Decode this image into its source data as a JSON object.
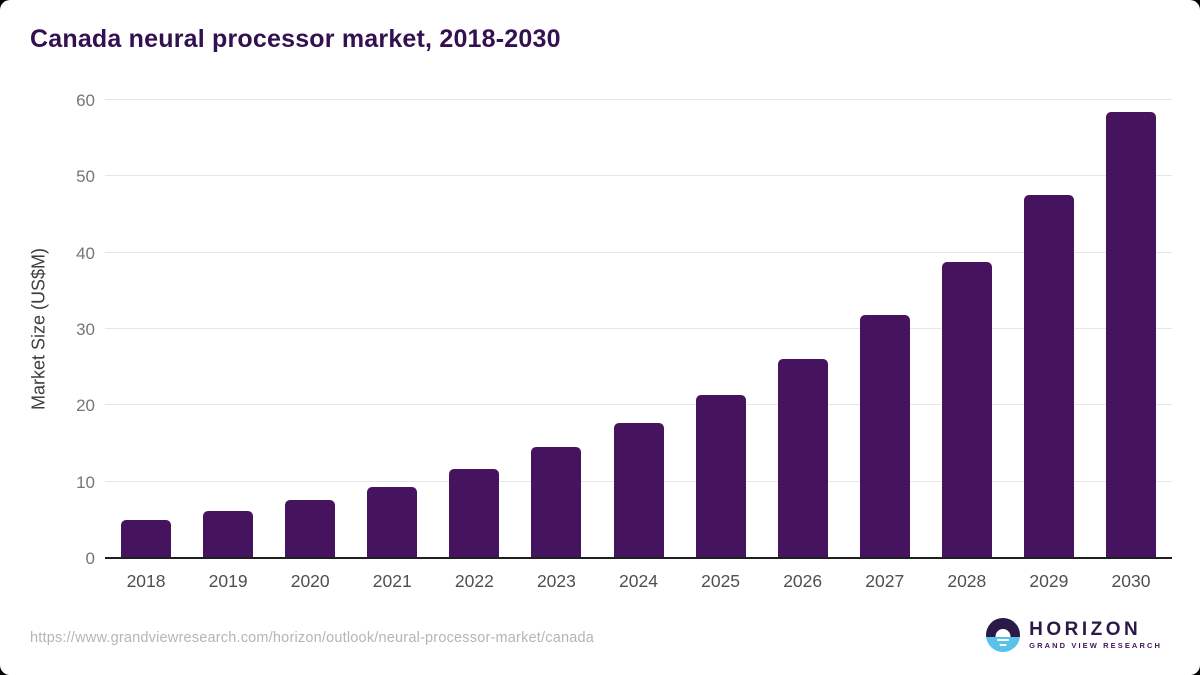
{
  "header": {
    "title": "Canada neural processor market, 2018-2030"
  },
  "chart_data": {
    "type": "bar",
    "title": "Canada neural processor market, 2018-2030",
    "categories": [
      "2018",
      "2019",
      "2020",
      "2021",
      "2022",
      "2023",
      "2024",
      "2025",
      "2026",
      "2027",
      "2028",
      "2029",
      "2030"
    ],
    "values": [
      5.0,
      6.2,
      7.6,
      9.3,
      11.7,
      14.6,
      17.7,
      21.4,
      26.1,
      31.8,
      38.8,
      47.6,
      58.4
    ],
    "xlabel": "",
    "ylabel": "Market Size (US$M)",
    "ylim": [
      0,
      60
    ],
    "yticks": [
      0,
      10,
      20,
      30,
      40,
      50,
      60
    ],
    "grid": true,
    "legend": false,
    "bar_color": "#46135f"
  },
  "footer": {
    "source_url": "https://www.grandviewresearch.com/horizon/outlook/neural-processor-market/canada",
    "logo": {
      "brand": "HORIZON",
      "tagline": "GRAND VIEW RESEARCH"
    }
  },
  "colors": {
    "title": "#331050",
    "bar": "#46135f",
    "gridline": "#e6e6e6",
    "axis_line": "#1f1f1f",
    "tick_label": "#767676",
    "x_label": "#4f4f4f",
    "source_url": "#b5b5b5",
    "logo_purple": "#2b1a47",
    "logo_blue": "#5ac0ec"
  }
}
